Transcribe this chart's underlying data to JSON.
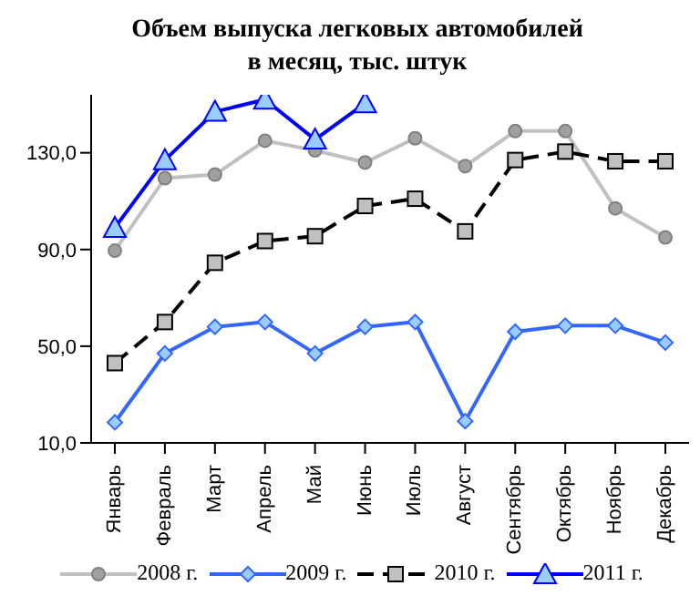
{
  "chart_data": {
    "type": "line",
    "title": "Объем выпуска легковых автомобилей\nв месяц, тыс. штук",
    "categories": [
      "Январь",
      "Февраль",
      "Март",
      "Апрель",
      "Май",
      "Июнь",
      "Июль",
      "Август",
      "Сентябрь",
      "Октябрь",
      "Ноябрь",
      "Декабрь"
    ],
    "series": [
      {
        "name": "2008 г.",
        "color": "#c0c0c0",
        "marker": "circle",
        "line_style": "solid",
        "values": [
          89.5,
          119.5,
          121,
          135,
          131,
          126,
          136,
          124.5,
          139,
          139,
          107,
          95
        ]
      },
      {
        "name": "2009 г.",
        "color": "#3366ff",
        "marker": "diamond",
        "line_style": "solid",
        "values": [
          18.5,
          47,
          58,
          60,
          47,
          58,
          60,
          19,
          56,
          58.5,
          58.5,
          51.5
        ]
      },
      {
        "name": "2010 г.",
        "color": "#000000",
        "marker": "square",
        "line_style": "dashed",
        "values": [
          43,
          60,
          84.5,
          93.5,
          95.5,
          108,
          111,
          97.5,
          127,
          130.5,
          126.5,
          126.5
        ]
      },
      {
        "name": "2011 г.",
        "color": "#0000ff",
        "marker": "triangle",
        "line_style": "solid",
        "values": [
          99,
          127,
          147,
          152,
          135.5,
          150.5,
          null,
          null,
          null,
          null,
          null,
          null
        ]
      }
    ],
    "ylim": [
      10,
      154
    ],
    "yticks": [
      {
        "value": 10,
        "label": "10,0"
      },
      {
        "value": 50,
        "label": "50,0"
      },
      {
        "value": 90,
        "label": "90,0"
      },
      {
        "value": 130,
        "label": "130,0"
      }
    ],
    "grid": false,
    "legend": "bottom"
  }
}
